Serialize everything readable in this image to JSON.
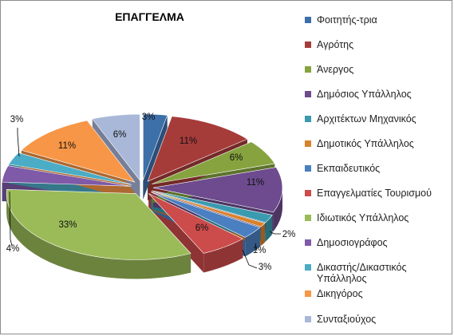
{
  "chart_data": {
    "type": "pie",
    "title": "ΕΠΑΓΓΕΛΜΑ",
    "three_d": true,
    "exploded": true,
    "legend_position": "right",
    "series": [
      {
        "name": "",
        "values": [
          3,
          11,
          6,
          11,
          2,
          1,
          3,
          6,
          33,
          4,
          3,
          11,
          6
        ],
        "data_labels": [
          "3%",
          "11%",
          "6%",
          "11%",
          "2%",
          "1%",
          "3%",
          "6%",
          "33%",
          "4%",
          "3%",
          "11%",
          "6%"
        ]
      }
    ],
    "categories": [
      "Φοιτητής-τρια",
      "Αγρότης",
      "Άνεργος",
      "Δημόσιος Υπάλληλος",
      "Αρχιτέκτων Μηχανικός",
      "Δημοτικός Υπάλληλος",
      "Εκπαιδευτικός",
      "Επαγγελματίες Τουρισμού",
      "Ιδιωτικός Υπάλληλος",
      "Δημοσιογράφος",
      "Δικαστής/Δικαστικός Υπάλληλος",
      "Δικηγόρος",
      "Συνταξιούχος"
    ],
    "colors": [
      "#3d6fa8",
      "#a63c3a",
      "#86a33f",
      "#6d4b8e",
      "#3a9bb0",
      "#d9822b",
      "#4a7fc1",
      "#cc4b4b",
      "#9bbb59",
      "#7e5aa8",
      "#4bacc6",
      "#f79646",
      "#a9b8d8"
    ],
    "side_colors": [
      "#2a4e78",
      "#732a28",
      "#5e722c",
      "#4c3463",
      "#286c7b",
      "#985b1e",
      "#345987",
      "#8f3434",
      "#6c833e",
      "#583f76",
      "#35788a",
      "#ad6931",
      "#767f97"
    ]
  }
}
